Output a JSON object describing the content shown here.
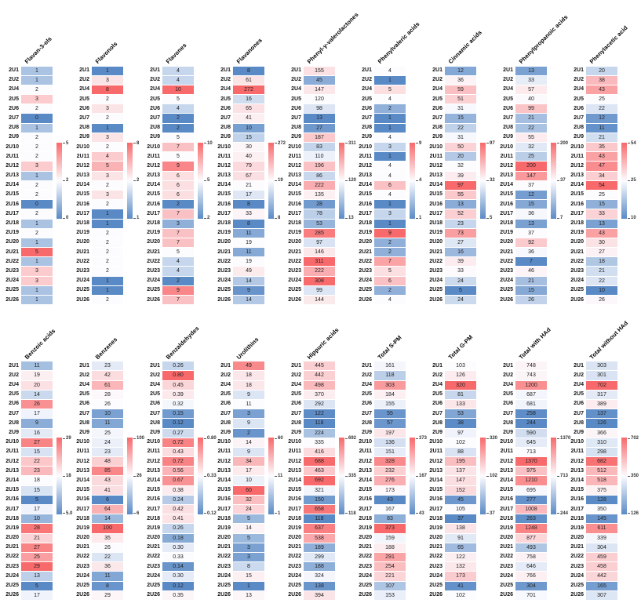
{
  "figure": {
    "description": "Grid of 18 heatmap panels of phenolic metabolite levels per subject",
    "colors": {
      "high": "#F8696B",
      "mid": "#FCFCFF",
      "low": "#5A8AC6"
    }
  },
  "chart_data": {
    "type": "heatmap",
    "legend_position": "right-of-each-panel",
    "colors": {
      "high": "#F8696B",
      "mid": "#FCFCFF",
      "low": "#5A8AC6"
    },
    "rows": [
      "2U1",
      "2U2",
      "2U4",
      "2U5",
      "2U6",
      "2U7",
      "2U8",
      "2U9",
      "2U10",
      "2U11",
      "2U12",
      "2U13",
      "2U14",
      "2U15",
      "2U16",
      "2U17",
      "2U18",
      "2U19",
      "2U20",
      "2U21",
      "2U22",
      "2U23",
      "2U24",
      "2U25",
      "2U26"
    ],
    "bands": [
      {
        "panels": [
          {
            "title": "Flavan-3-ols",
            "values": [
              "1",
              "1",
              "2",
              "3",
              "2",
              "0",
              "1",
              "2",
              "2",
              "2",
              "3",
              "1",
              "2",
              "2",
              "0",
              "2",
              "1",
              "2",
              "1",
              "5",
              "1",
              "3",
              "3",
              "1",
              "1"
            ],
            "ticks": {
              "max": "5",
              "mid": "2",
              "min": "0"
            }
          },
          {
            "title": "Flavonols",
            "values": [
              "1",
              "3",
              "8",
              "2",
              "3",
              "2",
              "1",
              "3",
              "2",
              "4",
              "5",
              "3",
              "2",
              "3",
              "2",
              "1",
              "1",
              "2",
              "2",
              "2",
              "2",
              "2",
              "1",
              "1",
              "2"
            ],
            "ticks": {
              "max": "8",
              "mid": "2",
              "min": "1"
            }
          },
          {
            "title": "Flavones",
            "values": [
              "4",
              "4",
              "10",
              "5",
              "4",
              "2",
              "2",
              "5",
              "7",
              "5",
              "9",
              "6",
              "6",
              "6",
              "2",
              "7",
              "3",
              "7",
              "7",
              "5",
              "4",
              "4",
              "2",
              "9",
              "7"
            ],
            "ticks": {
              "max": "10",
              "mid": "5",
              "min": "2"
            }
          },
          {
            "title": "Flavanones",
            "values": [
              "8",
              "61",
              "272",
              "16",
              "65",
              "41",
              "10",
              "15",
              "30",
              "40",
              "79",
              "67",
              "21",
              "17",
              "8",
              "33",
              "8",
              "11",
              "19",
              "11",
              "19",
              "49",
              "14",
              "9",
              "14"
            ],
            "ticks": {
              "max": "272",
              "mid": "19",
              "min": "8"
            }
          },
          {
            "title": "Phenyl-γ-valerolactones",
            "values": [
              "155",
              "45",
              "147",
              "120",
              "98",
              "13",
              "27",
              "187",
              "83",
              "110",
              "196",
              "86",
              "222",
              "135",
              "28",
              "78",
              "53",
              "285",
              "97",
              "146",
              "311",
              "222",
              "308",
              "99",
              "144"
            ],
            "ticks": {
              "max": "311",
              "mid": "120",
              "min": "13"
            }
          },
          {
            "title": "Phenylvaleric acids",
            "values": [
              "4",
              "1",
              "5",
              "4",
              "2",
              "1",
              "1",
              "4",
              "3",
              "1",
              "4",
              "4",
              "6",
              "4",
              "1",
              "3",
              "1",
              "9",
              "2",
              "2",
              "7",
              "5",
              "6",
              "2",
              "4"
            ],
            "ticks": {
              "max": "9",
              "mid": "4",
              "min": "1"
            }
          },
          {
            "title": "Cinnamic acids",
            "values": [
              "12",
              "36",
              "59",
              "51",
              "31",
              "15",
              "22",
              "31",
              "50",
              "20",
              "32",
              "39",
              "97",
              "55",
              "13",
              "52",
              "23",
              "73",
              "27",
              "16",
              "39",
              "33",
              "24",
              "5",
              "24"
            ],
            "ticks": {
              "max": "97",
              "mid": "32",
              "min": "5"
            }
          },
          {
            "title": "Phenylpropanoic acids",
            "values": [
              "13",
              "33",
              "57",
              "40",
              "99",
              "21",
              "22",
              "55",
              "32",
              "25",
              "200",
              "147",
              "37",
              "12",
              "15",
              "36",
              "13",
              "37",
              "92",
              "36",
              "7",
              "46",
              "21",
              "15",
              "26"
            ],
            "ticks": {
              "max": "200",
              "mid": "37",
              "min": "7"
            }
          },
          {
            "title": "Phenylacetic acid",
            "values": [
              "20",
              "38",
              "43",
              "25",
              "22",
              "12",
              "11",
              "21",
              "35",
              "43",
              "47",
              "34",
              "54",
              "25",
              "15",
              "33",
              "13",
              "43",
              "30",
              "27",
              "18",
              "21",
              "22",
              "10",
              "26"
            ],
            "ticks": {
              "max": "54",
              "mid": "25",
              "min": "10"
            }
          }
        ]
      },
      {
        "panels": [
          {
            "title": "Benzoic acids",
            "values": [
              "11",
              "19",
              "20",
              "14",
              "26",
              "17",
              "9",
              "16",
              "27",
              "15",
              "22",
              "23",
              "18",
              "15",
              "5",
              "17",
              "10",
              "28",
              "21",
              "27",
              "25",
              "29",
              "13",
              "5",
              "17"
            ],
            "ticks": {
              "max": "29",
              "mid": "18",
              "min": "5.0"
            }
          },
          {
            "title": "Benzenes",
            "values": [
              "23",
              "42",
              "61",
              "28",
              "26",
              "10",
              "11",
              "25",
              "24",
              "23",
              "48",
              "85",
              "43",
              "41",
              "6",
              "64",
              "14",
              "100",
              "35",
              "26",
              "22",
              "36",
              "11",
              "8",
              "29"
            ],
            "ticks": {
              "max": "100",
              "mid": "26",
              "min": "6"
            }
          },
          {
            "title": "Benzaldehydes",
            "values": [
              "0.26",
              "0.80",
              "0.45",
              "0.39",
              "0.32",
              "0.15",
              "0.12",
              "0.27",
              "0.72",
              "0.43",
              "0.72",
              "0.56",
              "0.67",
              "0.38",
              "0.24",
              "0.42",
              "0.41",
              "0.26",
              "0.18",
              "0.30",
              "0.33",
              "0.14",
              "0.30",
              "0.12",
              "0.35"
            ],
            "ticks": {
              "max": "0.80",
              "mid": "0.33",
              "min": "0.12"
            }
          },
          {
            "title": "Urolithins",
            "values": [
              "49",
              "18",
              "18",
              "9",
              "11",
              "3",
              "9",
              "2",
              "14",
              "9",
              "34",
              "17",
              "10",
              "60",
              "32",
              "24",
              "5",
              "14",
              "5",
              "3",
              "3",
              "8",
              "15",
              "1",
              "13"
            ],
            "ticks": {
              "max": "60",
              "mid": "11",
              "min": "1"
            }
          },
          {
            "title": "Hippuric acids",
            "values": [
              "445",
              "442",
              "498",
              "370",
              "292",
              "122",
              "118",
              "224",
              "335",
              "416",
              "688",
              "463",
              "692",
              "321",
              "150",
              "658",
              "118",
              "637",
              "538",
              "189",
              "299",
              "188",
              "324",
              "138",
              "394"
            ],
            "ticks": {
              "max": "692",
              "mid": "335",
              "min": "118"
            }
          },
          {
            "title": "Total S-PM",
            "values": [
              "161",
              "118",
              "303",
              "184",
              "155",
              "55",
              "57",
              "197",
              "136",
              "151",
              "328",
              "232",
              "276",
              "173",
              "43",
              "167",
              "83",
              "373",
              "159",
              "188",
              "291",
              "254",
              "221",
              "107",
              "153"
            ],
            "ticks": {
              "max": "373",
              "mid": "167",
              "min": "43"
            }
          },
          {
            "title": "Total G-PM",
            "values": [
              "103",
              "126",
              "320",
              "81",
              "133",
              "53",
              "38",
              "97",
              "102",
              "88",
              "195",
              "137",
              "147",
              "152",
              "45",
              "105",
              "37",
              "138",
              "91",
              "65",
              "122",
              "132",
              "173",
              "41",
              "102"
            ],
            "ticks": {
              "max": "320",
              "mid": "102",
              "min": "37"
            }
          },
          {
            "title": "Total with HAd",
            "values": [
              "748",
              "743",
              "1200",
              "687",
              "681",
              "258",
              "244",
              "590",
              "645",
              "713",
              "1370",
              "975",
              "1210",
              "695",
              "277",
              "1008",
              "263",
              "1248",
              "877",
              "493",
              "758",
              "646",
              "766",
              "304",
              "701"
            ],
            "ticks": {
              "max": "1370",
              "mid": "713",
              "min": "244"
            }
          },
          {
            "title": "Total without HAd",
            "values": [
              "303",
              "301",
              "702",
              "317",
              "389",
              "137",
              "126",
              "366",
              "310",
              "298",
              "682",
              "512",
              "518",
              "375",
              "128",
              "350",
              "145",
              "611",
              "339",
              "304",
              "459",
              "458",
              "442",
              "165",
              "307"
            ],
            "ticks": {
              "max": "702",
              "mid": "350",
              "min": "126"
            }
          }
        ]
      }
    ]
  }
}
